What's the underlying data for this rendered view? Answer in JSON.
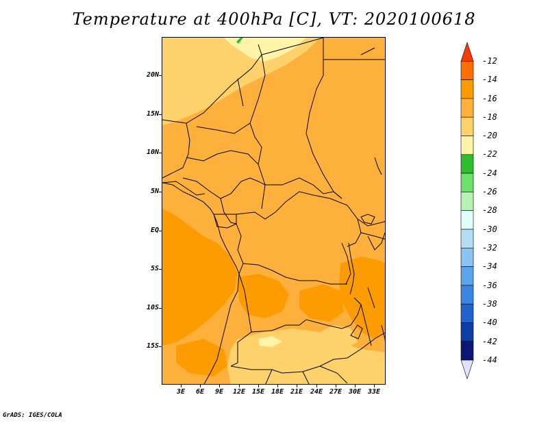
{
  "title": "Temperature at 400hPa [C], VT: 2020100618",
  "footer": "GrADS: IGES/COLA",
  "axes": {
    "lat_labels": [
      "20N",
      "15N",
      "10N",
      "5N",
      "EQ",
      "5S",
      "10S",
      "15S"
    ],
    "lon_labels": [
      "3E",
      "6E",
      "9E",
      "12E",
      "15E",
      "18E",
      "21E",
      "24E",
      "27E",
      "30E",
      "33E"
    ]
  },
  "colorbar": {
    "labels": [
      "-12",
      "-14",
      "-16",
      "-18",
      "-20",
      "-22",
      "-24",
      "-26",
      "-28",
      "-30",
      "-32",
      "-34",
      "-36",
      "-38",
      "-40",
      "-42",
      "-44"
    ],
    "colors": [
      "#fa3c00",
      "#fd6f00",
      "#fd9c00",
      "#fdb13c",
      "#fdd26c",
      "#fef3a7",
      "#2ebd2e",
      "#6be16b",
      "#b5f2b5",
      "#e1fffa",
      "#b5dcf5",
      "#8bc3f2",
      "#5ba5ec",
      "#3c85e1",
      "#2163cc",
      "#0d3ea6",
      "#0a1775",
      "#e1e1ff"
    ]
  },
  "legend_colors": {
    "dominant": "#fdb13c",
    "warm": "#fd9c00",
    "cool": "#fdd26c",
    "coolest": "#fef3a7"
  }
}
